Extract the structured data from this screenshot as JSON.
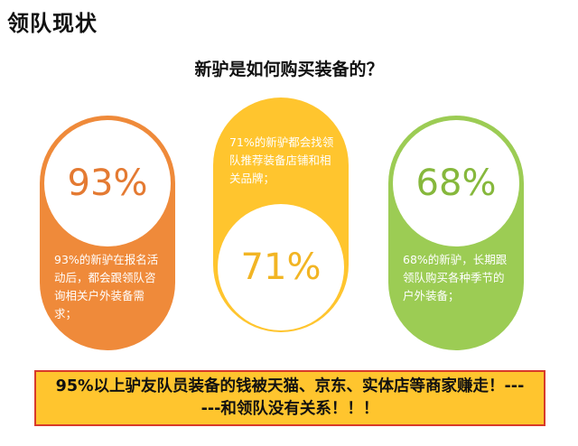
{
  "title": "领队现状",
  "question": "新驴是如何购买装备的？",
  "cards": [
    {
      "percent": "93%",
      "text": "93%的新驴在报名活动后，都会跟领队咨询相关户外装备需求；",
      "color": "#ef8a3a"
    },
    {
      "percent": "71%",
      "text": "71%的新驴都会找领队推荐装备店铺和相关品牌；",
      "color": "#ffc52e"
    },
    {
      "percent": "68%",
      "text": "68%的新驴，长期跟领队购买各种季节的户外装备；",
      "color": "#9ccc54"
    }
  ],
  "banner": {
    "text": "95%以上驴友队员装备的钱被天猫、京东、实体店等商家赚走！------和领队没有关系！！！",
    "background": "#ffc52e",
    "border": "#d83a2a"
  }
}
